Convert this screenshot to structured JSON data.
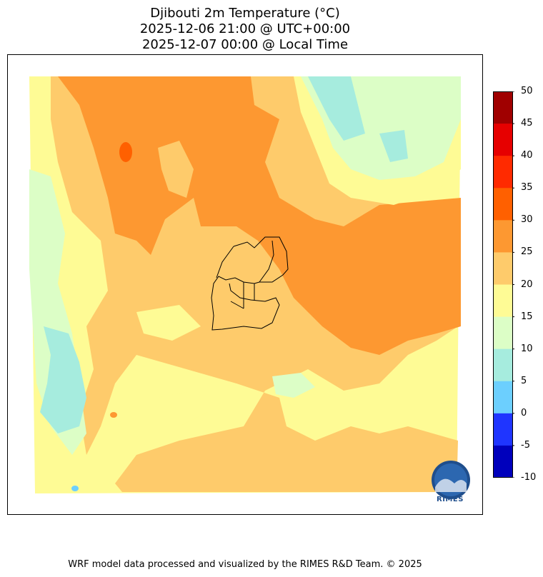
{
  "title": {
    "line1": "Djibouti 2m Temperature (°C)",
    "line2": "2025-12-06 21:00 @ UTC+00:00",
    "line3": "2025-12-07 00:00 @ Local Time"
  },
  "colorbar": {
    "ticks": [
      "50",
      "45",
      "40",
      "35",
      "30",
      "25",
      "20",
      "15",
      "10",
      "5",
      "0",
      "-5",
      "-10"
    ],
    "bins": [
      {
        "range": [
          45,
          50
        ],
        "color": "#a00000"
      },
      {
        "range": [
          40,
          45
        ],
        "color": "#e60000"
      },
      {
        "range": [
          35,
          40
        ],
        "color": "#ff2a00"
      },
      {
        "range": [
          30,
          35
        ],
        "color": "#ff6000"
      },
      {
        "range": [
          25,
          30
        ],
        "color": "#fd9831"
      },
      {
        "range": [
          20,
          25
        ],
        "color": "#fecb6b"
      },
      {
        "range": [
          15,
          20
        ],
        "color": "#fefb95"
      },
      {
        "range": [
          10,
          15
        ],
        "color": "#dcfec6"
      },
      {
        "range": [
          5,
          10
        ],
        "color": "#a6ecde"
      },
      {
        "range": [
          0,
          5
        ],
        "color": "#6ccffe"
      },
      {
        "range": [
          -5,
          0
        ],
        "color": "#1f35ff"
      },
      {
        "range": [
          -10,
          -5
        ],
        "color": "#0000bc"
      }
    ]
  },
  "logo": {
    "text": "RIMES"
  },
  "footer": "WRF model data processed and visualized by the RIMES R&D Team. © 2025"
}
